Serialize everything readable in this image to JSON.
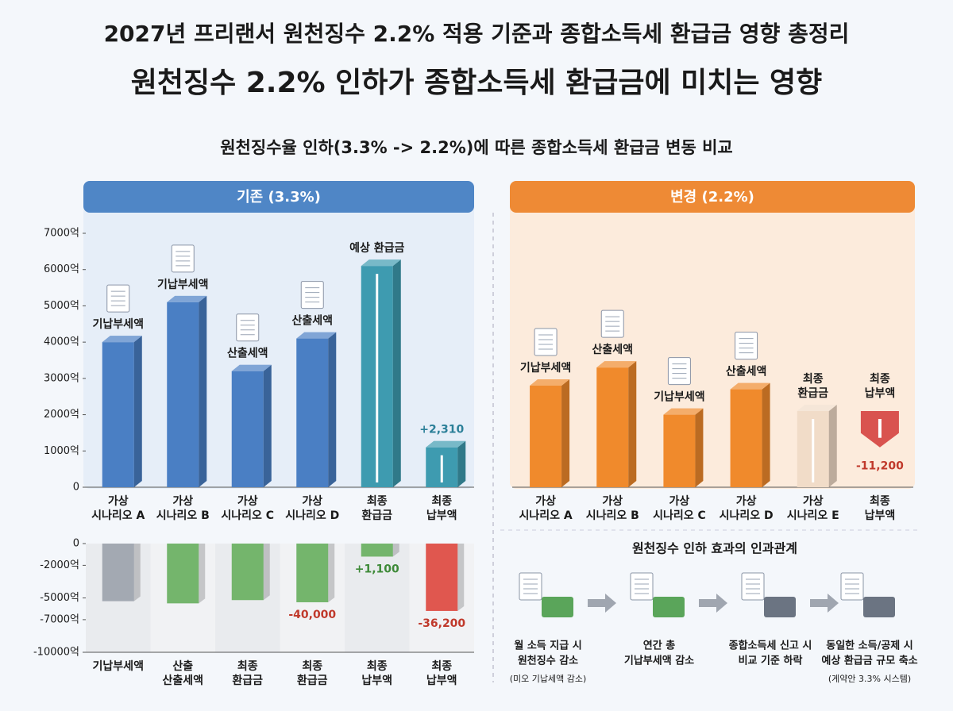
{
  "heading": {
    "title": "2027년 프리랜서 원천징수 2.2% 적용 기준과 종합소득세 환급금 영향 총정리",
    "subtitle": "원천징수 2.2% 인하가 종합소득세 환급금에 미치는 영향",
    "comparison": "원천징수율 인하(3.3% -> 2.2%)에 따른 종합소득세 환급금 변동 비교"
  },
  "chart_data": [
    {
      "type": "bar",
      "title": "기존 (3.3%)",
      "categories": [
        [
          "가상",
          "시나리오 A"
        ],
        [
          "가상",
          "시나리오 B"
        ],
        [
          "가상",
          "시나리오 C"
        ],
        [
          "가상",
          "시나리오 D"
        ],
        [
          "최종",
          "환급금"
        ],
        [
          "최종",
          "납부액"
        ]
      ],
      "values": [
        4000,
        5100,
        3200,
        4100,
        6100,
        1100
      ],
      "colors": [
        "#4a7fc4",
        "#4a7fc4",
        "#4a7fc4",
        "#4a7fc4",
        "#3e9bb0",
        "#3e9bb0"
      ],
      "annotations": [
        [
          "기납부세액"
        ],
        [
          "기납부세액"
        ],
        [
          "산출세액"
        ],
        [
          "산출세액"
        ],
        [
          "예상 환급금"
        ],
        [
          "+2,310"
        ]
      ],
      "ylim": [
        0,
        7000
      ],
      "yticks": [
        0,
        {
          "value": 1000,
          "label": "1000억"
        },
        {
          "value": 2000,
          "label": "2000억"
        },
        {
          "value": 3000,
          "label": "3000억"
        },
        {
          "value": 4000,
          "label": "4000억"
        },
        {
          "value": 5000,
          "label": "5000억"
        },
        {
          "value": 6000,
          "label": "6000억"
        },
        {
          "value": 7000,
          "label": "7000억"
        }
      ]
    },
    {
      "type": "bar",
      "title": "변경 (2.2%)",
      "categories": [
        [
          "가상",
          "시나리오 A"
        ],
        [
          "가상",
          "시나리오 B"
        ],
        [
          "가상",
          "시나리오 C"
        ],
        [
          "가상",
          "시나리오 D"
        ],
        [
          "가상",
          "시나리오 E"
        ],
        [
          "최종",
          "납부액"
        ]
      ],
      "values": [
        2800,
        3300,
        2000,
        2700,
        2100,
        1100
      ],
      "colors": [
        "#f08a2c",
        "#f08a2c",
        "#f08a2c",
        "#f08a2c",
        "#f1dcc8",
        "#d9534f"
      ],
      "annotations": [
        [
          "기납부세액"
        ],
        [
          "산출세액"
        ],
        [
          "기납부세액"
        ],
        [
          "산출세액"
        ],
        [
          "최종",
          "환급금"
        ],
        [
          "최종",
          "납부액"
        ]
      ],
      "notes": [
        null,
        null,
        null,
        null,
        null,
        "-11,200"
      ],
      "ylim": [
        0,
        7000
      ]
    },
    {
      "type": "bar",
      "categories": [
        [
          "기납부세액"
        ],
        [
          "산출",
          "산출세액"
        ],
        [
          "최종",
          "환급금"
        ],
        [
          "최종",
          "환급금"
        ],
        [
          "최종",
          "납부액"
        ],
        [
          "최종",
          "납부액"
        ]
      ],
      "values": [
        -5300,
        -5500,
        -5200,
        -5400,
        -1200,
        -6200
      ],
      "colors": [
        "#a3a9b2",
        "#74b56c",
        "#74b56c",
        "#74b56c",
        "#74b56c",
        "#e0574f"
      ],
      "notes": [
        null,
        null,
        null,
        "-40,000",
        "+1,100",
        "-36,200"
      ],
      "ylim": [
        -10000,
        0
      ],
      "yticks": [
        0,
        {
          "value": -2000,
          "label": "-2000억"
        },
        {
          "value": -5000,
          "label": "-5000억"
        },
        {
          "value": -7000,
          "label": "-7000억"
        },
        {
          "value": -10000,
          "label": "-10000억"
        }
      ]
    }
  ],
  "causal": {
    "title": "원천징수 인하 효과의 인과관계",
    "steps": [
      {
        "lines": [
          "월 소득 지급 시",
          "원천징수 감소"
        ],
        "note": "(미오 기납세액 감소)"
      },
      {
        "lines": [
          "연간 총",
          "기납부세액 감소"
        ]
      },
      {
        "lines": [
          "종합소득세 신고 시",
          "비교 기준 하락"
        ]
      },
      {
        "lines": [
          "동일한 소득/공제 시",
          "예상 환급금 규모 축소"
        ],
        "note": "(게약안 3.3% 시스템)"
      }
    ]
  }
}
